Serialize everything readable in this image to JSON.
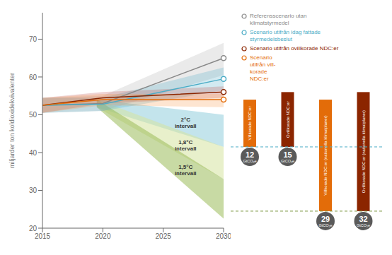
{
  "chart_data": {
    "type": "line",
    "ylabel": "miljarder ton koldioxidekvivalenter",
    "xlim": [
      2015,
      2030
    ],
    "xticks": [
      2015,
      2020,
      2025,
      2030
    ],
    "ylim": [
      20,
      77
    ],
    "yticks": [
      20,
      30,
      40,
      50,
      60,
      70
    ],
    "grid": false,
    "legend": "right",
    "series": [
      {
        "name": "Referensscenario utan\nklimatstyrmedel",
        "color": "#888888",
        "marker": "circle",
        "x": [
          2015,
          2020,
          2030
        ],
        "values": [
          52.5,
          53.0,
          65.0
        ],
        "band_lo": [
          50.5,
          51.0,
          60.5
        ],
        "band_hi": [
          54.5,
          55.0,
          69.0
        ],
        "band_color": "#aaaaaa"
      },
      {
        "name": "Scenario utifrån idag fattade\nstyrmedelsbeslut",
        "color": "#4bacc6",
        "marker": "circle",
        "x": [
          2015,
          2020,
          2030
        ],
        "values": [
          52.5,
          52.8,
          59.5
        ],
        "band_lo": [
          50.5,
          51.0,
          56.5
        ],
        "band_hi": [
          54.5,
          54.5,
          62.5
        ],
        "band_color": "#4bacc6"
      },
      {
        "name": "Scenario utifrån ovillkorade NDC:er",
        "color": "#8b2500",
        "marker": "circle",
        "x": [
          2015,
          2020,
          2030
        ],
        "values": [
          52.5,
          54.5,
          56.0
        ],
        "band_lo": [
          50.5,
          53.0,
          54.5
        ],
        "band_hi": [
          54.5,
          56.0,
          57.5
        ],
        "band_color": "#c0504d"
      },
      {
        "name": "Scenario\nutifrån vill-\nkorade\nNDC:er",
        "color": "#e36c09",
        "marker": "circle",
        "x": [
          2015,
          2020,
          2030
        ],
        "values": [
          52.5,
          54.0,
          54.0
        ],
        "band_lo": [
          50.5,
          52.5,
          52.0
        ],
        "band_hi": [
          54.5,
          55.5,
          55.5
        ],
        "band_color": "#f79646"
      }
    ],
    "ranges": [
      {
        "name": "2°C\nintervall",
        "color": "#92cddc",
        "x": [
          2019.5,
          2030
        ],
        "lo": [
          52.0,
          41.5
        ],
        "hi": [
          54.0,
          50.0
        ]
      },
      {
        "name": "1,8°C\nintervall",
        "color": "#d6e4a1",
        "x": [
          2019.5,
          2030
        ],
        "lo": [
          52.0,
          33.0
        ],
        "hi": [
          54.0,
          41.5
        ]
      },
      {
        "name": "1,5°C\nintervall",
        "color": "#9bbb59",
        "x": [
          2019.5,
          2030
        ],
        "lo": [
          52.0,
          22.5
        ],
        "hi": [
          54.0,
          33.0
        ]
      }
    ],
    "reference_lines": [
      {
        "y": 41.5,
        "color": "#4bacc6",
        "line_style": "dashed"
      },
      {
        "y": 24.5,
        "color": "#77933c",
        "line_style": "dashed"
      }
    ],
    "gap_bars": [
      {
        "label": "Villkorade NDC:er",
        "from": 41.5,
        "to": 54.0,
        "color": "#e36c09",
        "gap": 12
      },
      {
        "label": "Ovillkorade NDC:er",
        "from": 41.5,
        "to": 56.0,
        "color": "#8b2500",
        "gap": 15
      },
      {
        "label": "Villkorade NDC:er (nationella klimatplaner)",
        "from": 24.5,
        "to": 54.0,
        "color": "#e36c09",
        "gap": 29
      },
      {
        "label": "Ovillkorade NDC:er (nationella klimatplaner)",
        "from": 24.5,
        "to": 56.0,
        "color": "#8b2500",
        "gap": 32
      }
    ],
    "gap_unit": "GtCO₂e",
    "gap_color": "#5a5a5a"
  }
}
